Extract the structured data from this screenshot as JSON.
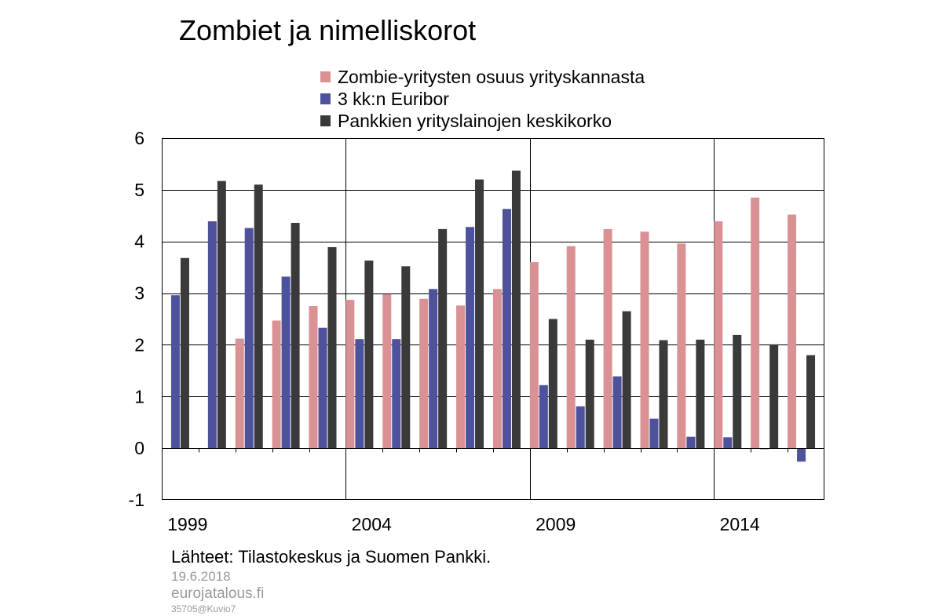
{
  "chart_data": {
    "type": "bar",
    "title": "Zombiet ja nimelliskorot",
    "categories": [
      "1999",
      "2000",
      "2001",
      "2002",
      "2003",
      "2004",
      "2005",
      "2006",
      "2007",
      "2008",
      "2009",
      "2010",
      "2011",
      "2012",
      "2013",
      "2014",
      "2015",
      "2016"
    ],
    "x_tick_labels": [
      "1999",
      "2004",
      "2009",
      "2014"
    ],
    "series": [
      {
        "name": "Zombie-yritysten osuus yrityskannasta",
        "color": "#d99194",
        "values": [
          null,
          null,
          2.12,
          2.47,
          2.75,
          2.87,
          2.98,
          2.89,
          2.76,
          3.08,
          3.6,
          3.91,
          4.24,
          4.19,
          3.96,
          4.39,
          4.85,
          4.52
        ]
      },
      {
        "name": "3 kk:n Euribor",
        "color": "#4e519c",
        "values": [
          2.96,
          4.39,
          4.26,
          3.32,
          2.33,
          2.11,
          2.11,
          3.08,
          4.28,
          4.63,
          1.22,
          0.81,
          1.39,
          0.57,
          0.22,
          0.21,
          -0.02,
          -0.26
        ]
      },
      {
        "name": "Pankkien yrityslainojen keskikorko",
        "color": "#3a3a3a",
        "values": [
          3.68,
          5.17,
          5.1,
          4.36,
          3.89,
          3.63,
          3.52,
          4.24,
          5.2,
          5.37,
          2.5,
          2.1,
          2.65,
          2.09,
          2.1,
          2.19,
          2.01,
          1.8
        ]
      }
    ],
    "y_ticks": [
      "6",
      "5",
      "4",
      "3",
      "2",
      "1",
      "0",
      "-1"
    ],
    "ylim": [
      -1,
      6
    ],
    "grid": true,
    "legend_position": "top"
  },
  "footer": {
    "source": "Lähteet: Tilastokeskus ja Suomen Pankki.",
    "date": "19.6.2018",
    "site": "eurojatalous.fi",
    "code": "35705@Kuvio7"
  }
}
